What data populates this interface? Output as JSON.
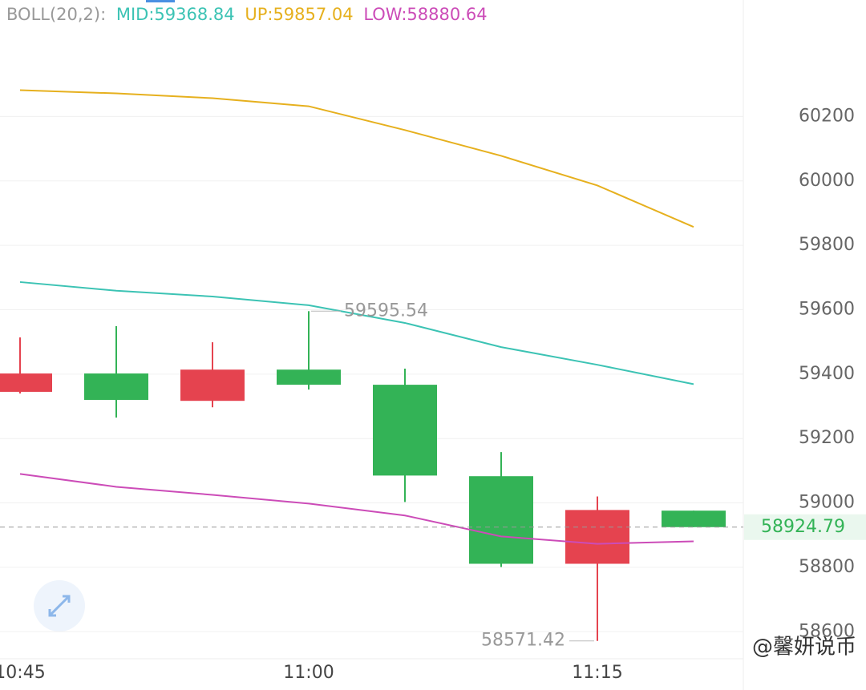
{
  "chart_data": {
    "type": "candlestick",
    "indicator": "BOLL(20,2):",
    "categories": [
      "10:45",
      null,
      null,
      "11:00",
      null,
      null,
      "11:15",
      null
    ],
    "open": [
      59345,
      59402,
      59317,
      59414,
      59367,
      59083,
      58811,
      58976
    ],
    "high": [
      59514,
      59549,
      59499,
      59595.54,
      59417,
      59158,
      59020,
      58976
    ],
    "low": [
      59340,
      59265,
      59297,
      59352,
      59003,
      58801,
      58571.42,
      58924.79
    ],
    "close": [
      59402,
      59320,
      59414,
      59367,
      59085,
      58811,
      58978,
      58924.79
    ],
    "up_color": "#e5434f",
    "down_color": "#33b356",
    "series": [
      {
        "name": "MID",
        "legend_label": "MID:59368.84",
        "color": "#3cc3b4",
        "values": [
          59686,
          59659,
          59641,
          59614,
          59559,
          59484,
          59429,
          59368.84
        ]
      },
      {
        "name": "UP",
        "legend_label": "UP:59857.04",
        "color": "#e6b01e",
        "values": [
          60282,
          60272,
          60257,
          60232,
          60158,
          60078,
          59986,
          59857.04
        ]
      },
      {
        "name": "LOW",
        "legend_label": "LOW:58880.64",
        "color": "#cc4cb8",
        "values": [
          59090,
          59050,
          59025,
          58998,
          58961,
          58896,
          58873,
          58880.64
        ]
      }
    ],
    "ylim": [
      58516,
      60562
    ],
    "yticks": [
      58600,
      58800,
      59000,
      59200,
      59400,
      59600,
      59800,
      60000,
      60200
    ],
    "grid": true,
    "watermark": "@馨妍说币"
  }
}
